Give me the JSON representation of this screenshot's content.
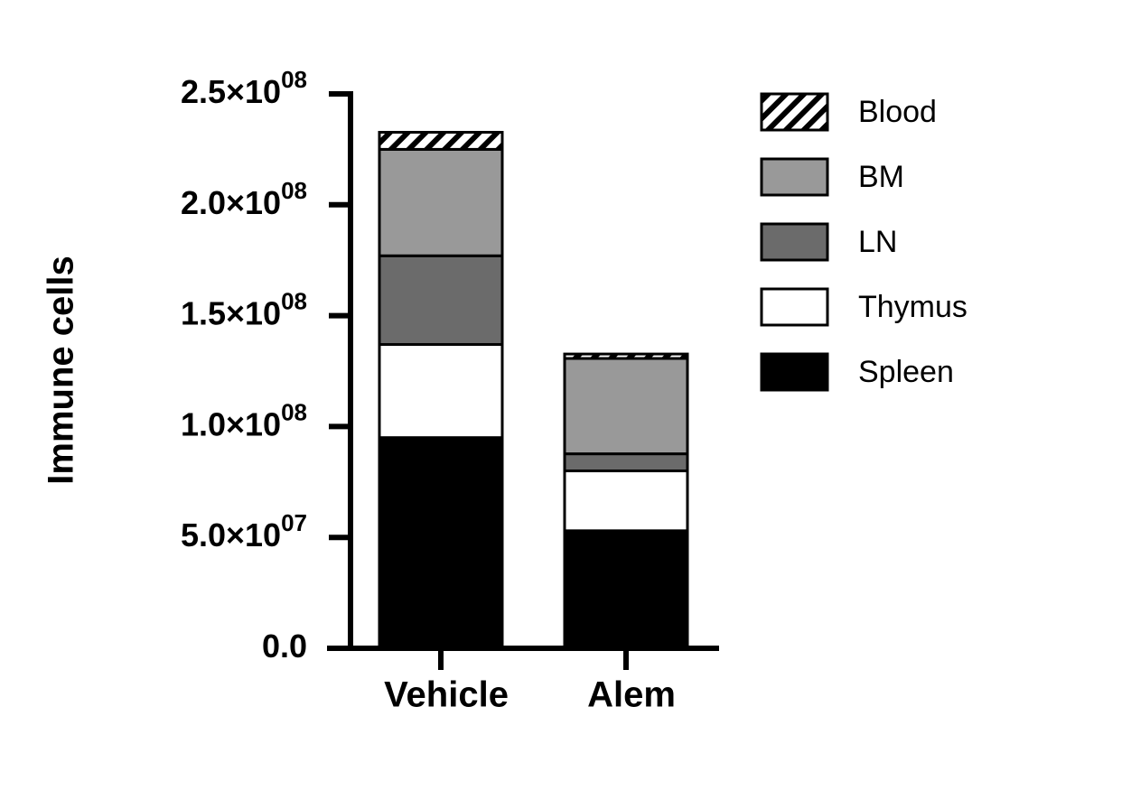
{
  "chart_data": {
    "type": "stacked_bar",
    "y_label": "Immune cells",
    "categories": [
      "Vehicle",
      "Alem"
    ],
    "series": [
      {
        "name": "Spleen",
        "color": "#000000",
        "values": [
          95000000,
          53000000
        ]
      },
      {
        "name": "Thymus",
        "color": "#ffffff",
        "values": [
          42000000,
          27000000
        ]
      },
      {
        "name": "LN",
        "color": "#6b6b6b",
        "values": [
          40000000,
          7700000
        ]
      },
      {
        "name": "BM",
        "color": "#999999",
        "values": [
          48000000,
          43000000
        ]
      },
      {
        "name": "Blood",
        "color": "#ffffff",
        "pattern": "hatch",
        "values": [
          7700000,
          2000000
        ]
      }
    ],
    "ylim": [
      0,
      250000000
    ],
    "yticks": [
      {
        "value": 0,
        "label": "0.0"
      },
      {
        "value": 50000000,
        "label": "5.0×10",
        "exponent": "07"
      },
      {
        "value": 100000000,
        "label": "1.0×10",
        "exponent": "08"
      },
      {
        "value": 150000000,
        "label": "1.5×10",
        "exponent": "08"
      },
      {
        "value": 200000000,
        "label": "2.0×10",
        "exponent": "08"
      },
      {
        "value": 250000000,
        "label": "2.5×10",
        "exponent": "08"
      }
    ],
    "legend": "right"
  }
}
